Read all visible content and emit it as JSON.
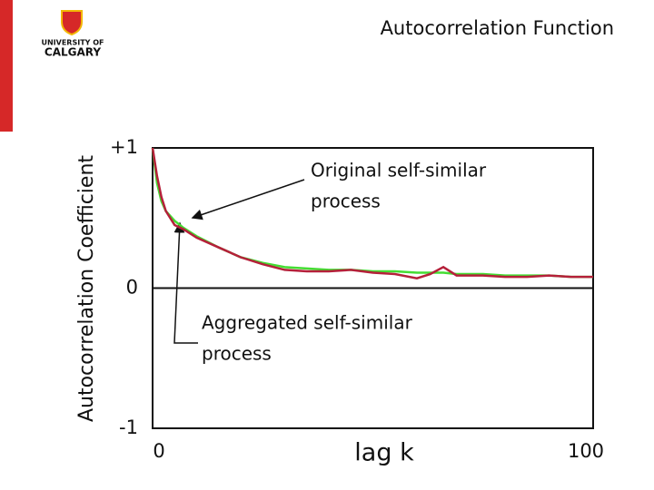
{
  "logo": {
    "lines": [
      "UNIVERSITY OF",
      "CALGARY"
    ]
  },
  "chart_data": {
    "type": "line",
    "title": "Autocorrelation Function",
    "y_label": "Autocorrelation Coefficient",
    "x_label": "lag k",
    "x": [
      0,
      1,
      2,
      3,
      5,
      7,
      10,
      15,
      20,
      25,
      30,
      35,
      40,
      45,
      50,
      55,
      60,
      63,
      66,
      69,
      75,
      80,
      85,
      90,
      95,
      100
    ],
    "series": [
      {
        "name": "Original self-similar process",
        "color": "#44dd33",
        "values": [
          1,
          0.75,
          0.62,
          0.55,
          0.48,
          0.43,
          0.37,
          0.29,
          0.22,
          0.18,
          0.15,
          0.14,
          0.13,
          0.13,
          0.12,
          0.12,
          0.11,
          0.11,
          0.11,
          0.1,
          0.1,
          0.09,
          0.09,
          0.09,
          0.08,
          0.08
        ]
      },
      {
        "name": "Aggregated self-similar process",
        "color": "#b5203a",
        "values": [
          1,
          0.8,
          0.65,
          0.55,
          0.45,
          0.42,
          0.36,
          0.29,
          0.22,
          0.17,
          0.13,
          0.12,
          0.12,
          0.13,
          0.11,
          0.1,
          0.07,
          0.1,
          0.15,
          0.09,
          0.09,
          0.08,
          0.08,
          0.09,
          0.08,
          0.08
        ]
      }
    ],
    "annotations": [
      {
        "lines": [
          "Original self-similar",
          "process"
        ]
      },
      {
        "lines": [
          "Aggregated self-similar",
          "process"
        ]
      }
    ],
    "xlim": [
      0,
      100
    ],
    "xticks": [
      0,
      100
    ],
    "ylim": [
      -1,
      1
    ],
    "yticks": [
      {
        "value": 1,
        "label": "+1"
      },
      0,
      -1
    ]
  }
}
